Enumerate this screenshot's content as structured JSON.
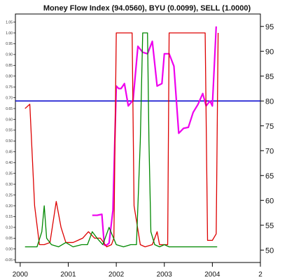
{
  "chart_data": {
    "type": "line",
    "title": "Money Flow Index (94.0560), BYU (0.0099), SELL (1.0000)",
    "xlabel": "",
    "ylabel": "",
    "x_ticks": [
      "2000",
      "2001",
      "2002",
      "2003",
      "2004",
      "2"
    ],
    "y_right_ticks": [
      "50",
      "55",
      "60",
      "65",
      "70",
      "75",
      "80",
      "85",
      "90",
      "95"
    ],
    "y_left_ticks": [
      "-0.05",
      "0.00",
      "0.05",
      "0.10",
      "0.15",
      "0.20",
      "0.25",
      "0.30",
      "0.35",
      "0.40",
      "0.45",
      "0.50",
      "0.55",
      "0.60",
      "0.65",
      "0.70",
      "0.75",
      "0.80",
      "0.85",
      "0.90",
      "0.95",
      "1.00",
      "1.05"
    ],
    "x_range": [
      1999.9,
      2005.0
    ],
    "y_right_range": [
      47.5,
      97.5
    ],
    "y_left_range": [
      -0.0625,
      1.0875
    ],
    "grid": false,
    "reference_line": {
      "axis": "right",
      "value": 80.0,
      "color": "#0000cc"
    },
    "series": [
      {
        "axis": "right",
        "color": "#ee00ee",
        "points": [
          [
            2001.5,
            57.0
          ],
          [
            2001.6,
            57.0
          ],
          [
            2001.7,
            57.2
          ],
          [
            2001.75,
            51.0
          ],
          [
            2001.8,
            51.0
          ],
          [
            2001.85,
            51.4
          ],
          [
            2001.93,
            58.0
          ],
          [
            2002.0,
            83.0
          ],
          [
            2002.05,
            82.5
          ],
          [
            2002.1,
            82.5
          ],
          [
            2002.17,
            83.5
          ],
          [
            2002.25,
            79.0
          ],
          [
            2002.35,
            80.2
          ],
          [
            2002.45,
            91.0
          ],
          [
            2002.55,
            89.8
          ],
          [
            2002.65,
            89.5
          ],
          [
            2002.75,
            92.0
          ],
          [
            2002.85,
            83.0
          ],
          [
            2002.95,
            83.5
          ],
          [
            2003.0,
            89.5
          ],
          [
            2003.1,
            89.5
          ],
          [
            2003.2,
            87.0
          ],
          [
            2003.3,
            73.5
          ],
          [
            2003.4,
            74.5
          ],
          [
            2003.5,
            74.7
          ],
          [
            2003.6,
            77.7
          ],
          [
            2003.7,
            79.3
          ],
          [
            2003.8,
            81.5
          ],
          [
            2003.87,
            79.0
          ],
          [
            2003.95,
            80.0
          ],
          [
            2004.0,
            79.0
          ],
          [
            2004.08,
            95.0
          ]
        ]
      },
      {
        "axis": "left",
        "color": "#dd0000",
        "points": [
          [
            2000.1,
            0.65
          ],
          [
            2000.2,
            0.67
          ],
          [
            2000.3,
            0.2
          ],
          [
            2000.4,
            0.02
          ],
          [
            2000.5,
            0.02
          ],
          [
            2000.62,
            0.03
          ],
          [
            2000.75,
            0.22
          ],
          [
            2000.85,
            0.1
          ],
          [
            2000.95,
            0.03
          ],
          [
            2001.1,
            0.03
          ],
          [
            2001.2,
            0.04
          ],
          [
            2001.3,
            0.05
          ],
          [
            2001.42,
            0.08
          ],
          [
            2001.55,
            0.05
          ],
          [
            2001.67,
            0.05
          ],
          [
            2001.8,
            0.01
          ],
          [
            2001.9,
            0.02
          ],
          [
            2001.95,
            0.05
          ],
          [
            2002.0,
            1.0
          ],
          [
            2002.33,
            1.0
          ],
          [
            2002.37,
            0.2
          ],
          [
            2002.5,
            0.02
          ],
          [
            2002.6,
            0.01
          ],
          [
            2002.75,
            0.02
          ],
          [
            2002.85,
            0.08
          ],
          [
            2002.9,
            0.02
          ],
          [
            2003.0,
            0.02
          ],
          [
            2003.07,
            0.02
          ],
          [
            2003.1,
            1.0
          ],
          [
            2003.85,
            1.0
          ],
          [
            2003.9,
            0.04
          ],
          [
            2004.0,
            0.04
          ],
          [
            2004.08,
            0.07
          ],
          [
            2004.12,
            1.0
          ]
        ]
      },
      {
        "axis": "left",
        "color": "#008800",
        "points": [
          [
            2000.1,
            0.01
          ],
          [
            2000.35,
            0.01
          ],
          [
            2000.45,
            0.08
          ],
          [
            2000.5,
            0.2
          ],
          [
            2000.55,
            0.05
          ],
          [
            2000.65,
            0.02
          ],
          [
            2000.8,
            0.01
          ],
          [
            2000.95,
            0.03
          ],
          [
            2001.1,
            0.01
          ],
          [
            2001.28,
            0.02
          ],
          [
            2001.4,
            0.02
          ],
          [
            2001.5,
            0.08
          ],
          [
            2001.6,
            0.05
          ],
          [
            2001.72,
            0.02
          ],
          [
            2001.85,
            0.1
          ],
          [
            2002.0,
            0.02
          ],
          [
            2002.15,
            0.01
          ],
          [
            2002.3,
            0.02
          ],
          [
            2002.42,
            0.02
          ],
          [
            2002.5,
            0.5
          ],
          [
            2002.55,
            1.0
          ],
          [
            2002.65,
            1.0
          ],
          [
            2002.68,
            0.5
          ],
          [
            2002.72,
            0.08
          ],
          [
            2002.8,
            0.02
          ],
          [
            2002.9,
            0.01
          ],
          [
            2003.0,
            0.02
          ],
          [
            2003.1,
            0.01
          ],
          [
            2003.5,
            0.01
          ],
          [
            2004.0,
            0.01
          ],
          [
            2004.1,
            0.01
          ]
        ]
      }
    ]
  }
}
